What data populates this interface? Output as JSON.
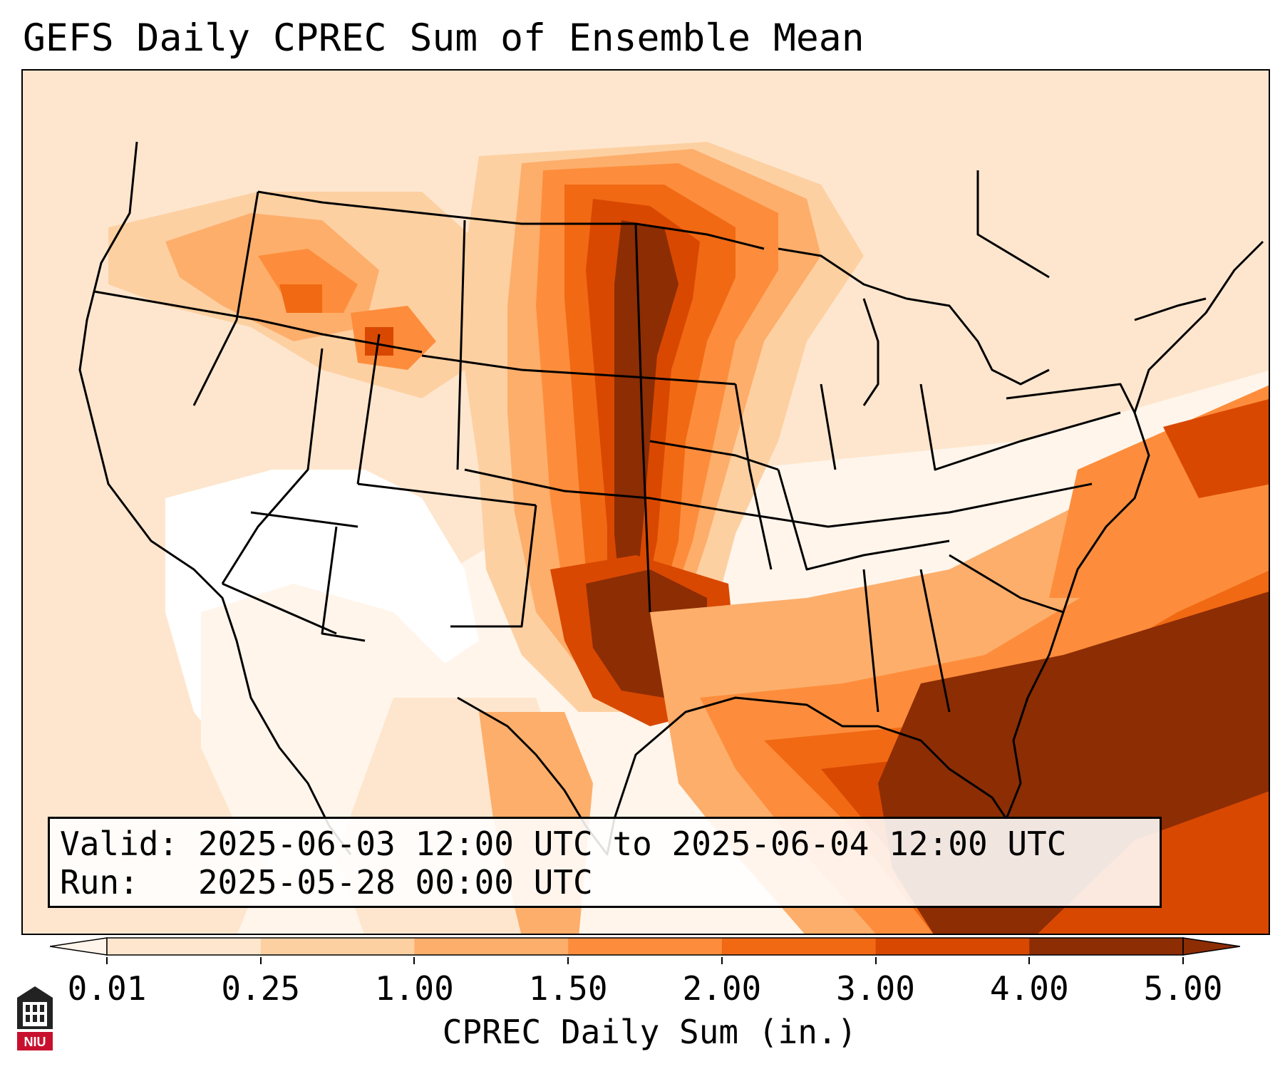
{
  "title": "GEFS Daily CPREC Sum of Ensemble Mean",
  "valid_line": "Valid: 2025-06-03 12:00 UTC to 2025-06-04 12:00 UTC",
  "run_line": "Run:   2025-05-28 00:00 UTC",
  "colorbar": {
    "label": "CPREC Daily Sum (in.)",
    "tick_labels": [
      "0.01",
      "0.25",
      "1.00",
      "1.50",
      "2.00",
      "3.00",
      "4.00",
      "5.00"
    ],
    "colors": [
      "#fff5eb",
      "#fee6ce",
      "#fdd0a2",
      "#fdae6b",
      "#fd8d3c",
      "#f16913",
      "#d94801",
      "#8c2d04"
    ],
    "extend": "both"
  },
  "logo": {
    "icon": "niu-tower-icon",
    "text": "NIU"
  }
}
